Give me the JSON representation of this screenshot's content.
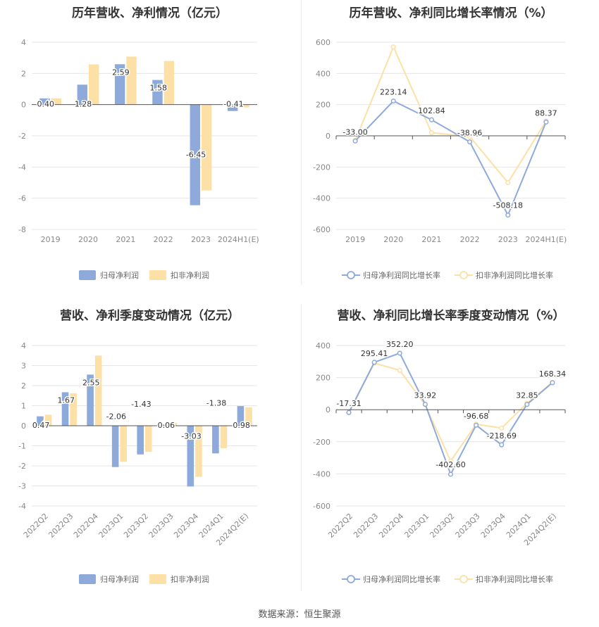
{
  "source_label": "数据来源：恒生聚源",
  "colors": {
    "series1": "#8eaadb",
    "series2": "#fde0a6",
    "grid": "#e6e6e6",
    "axis": "#555555",
    "tick": "#888888"
  },
  "chart_data": [
    {
      "type": "bar",
      "title": "历年营收、净利情况（亿元）",
      "categories": [
        "2019",
        "2020",
        "2021",
        "2022",
        "2023",
        "2024H1(E)"
      ],
      "series": [
        {
          "name": "归母净利润",
          "values": [
            0.4,
            1.28,
            2.59,
            1.58,
            -6.45,
            -0.41
          ],
          "labels": [
            "0.40",
            "1.28",
            "2.59",
            "1.58",
            "-6.45",
            "-0.41"
          ]
        },
        {
          "name": "扣非净利润",
          "values": [
            0.4,
            2.58,
            3.08,
            2.8,
            -5.5,
            -0.18
          ]
        }
      ],
      "ylim": [
        -8,
        4
      ],
      "yticks": [
        4,
        2,
        0,
        -2,
        -4,
        -6,
        -8
      ],
      "grid": true,
      "legend": "bottom"
    },
    {
      "type": "line",
      "title": "历年营收、净利同比增长率情况（%）",
      "categories": [
        "2019",
        "2020",
        "2021",
        "2022",
        "2023",
        "2024H1(E)"
      ],
      "series": [
        {
          "name": "归母净利润同比增长率",
          "values": [
            -33.0,
            223.14,
            102.84,
            -38.96,
            -508.18,
            88.37
          ],
          "labels": [
            "-33.00",
            "223.14",
            "102.84",
            "-38.96",
            "-508.18",
            "88.37"
          ]
        },
        {
          "name": "扣非净利润同比增长率",
          "values": [
            -30,
            570,
            20,
            -5,
            -300,
            95
          ]
        }
      ],
      "ylim": [
        -600,
        600
      ],
      "yticks": [
        600,
        400,
        200,
        0,
        -200,
        -400,
        -600
      ],
      "grid": true,
      "legend": "bottom"
    },
    {
      "type": "bar",
      "title": "营收、净利季度变动情况（亿元）",
      "categories": [
        "2022Q2",
        "2022Q3",
        "2022Q4",
        "2023Q1",
        "2023Q2",
        "2023Q3",
        "2023Q4",
        "2024Q1",
        "2024Q2(E)"
      ],
      "series": [
        {
          "name": "归母净利润",
          "values": [
            0.47,
            1.67,
            2.55,
            -2.06,
            -1.43,
            0.06,
            -3.03,
            -1.38,
            0.98
          ],
          "labels": [
            "0.47",
            "1.67",
            "2.55",
            "-2.06",
            "-1.43",
            "0.06",
            "-3.03",
            "-1.38",
            "0.98"
          ]
        },
        {
          "name": "扣非净利润",
          "values": [
            0.55,
            1.62,
            3.5,
            -1.8,
            -1.3,
            0.15,
            -2.55,
            -1.12,
            0.92
          ]
        }
      ],
      "ylim": [
        -4,
        4
      ],
      "yticks": [
        4,
        3,
        2,
        1,
        0,
        -1,
        -2,
        -3,
        -4
      ],
      "grid": true,
      "legend": "bottom"
    },
    {
      "type": "line",
      "title": "营收、净利同比增长率季度变动情况（%）",
      "categories": [
        "2022Q2",
        "2022Q3",
        "2022Q4",
        "2023Q1",
        "2023Q2",
        "2023Q3",
        "2023Q4",
        "2024Q1",
        "2024Q2(E)"
      ],
      "series": [
        {
          "name": "归母净利润同比增长率",
          "values": [
            -17.31,
            295.41,
            352.2,
            33.92,
            -402.6,
            -96.68,
            -218.69,
            32.85,
            168.34
          ],
          "labels": [
            "-17.31",
            "295.41",
            "352.20",
            "33.92",
            "-402.60",
            "-96.68",
            "-218.69",
            "32.85",
            "168.34"
          ]
        },
        {
          "name": "扣非净利润同比增长率",
          "values": [
            -20,
            290,
            245,
            30,
            -320,
            -90,
            -115,
            40,
            170
          ]
        }
      ],
      "ylim": [
        -600,
        400
      ],
      "yticks": [
        400,
        200,
        0,
        -200,
        -400,
        -600
      ],
      "grid": true,
      "legend": "bottom"
    }
  ]
}
